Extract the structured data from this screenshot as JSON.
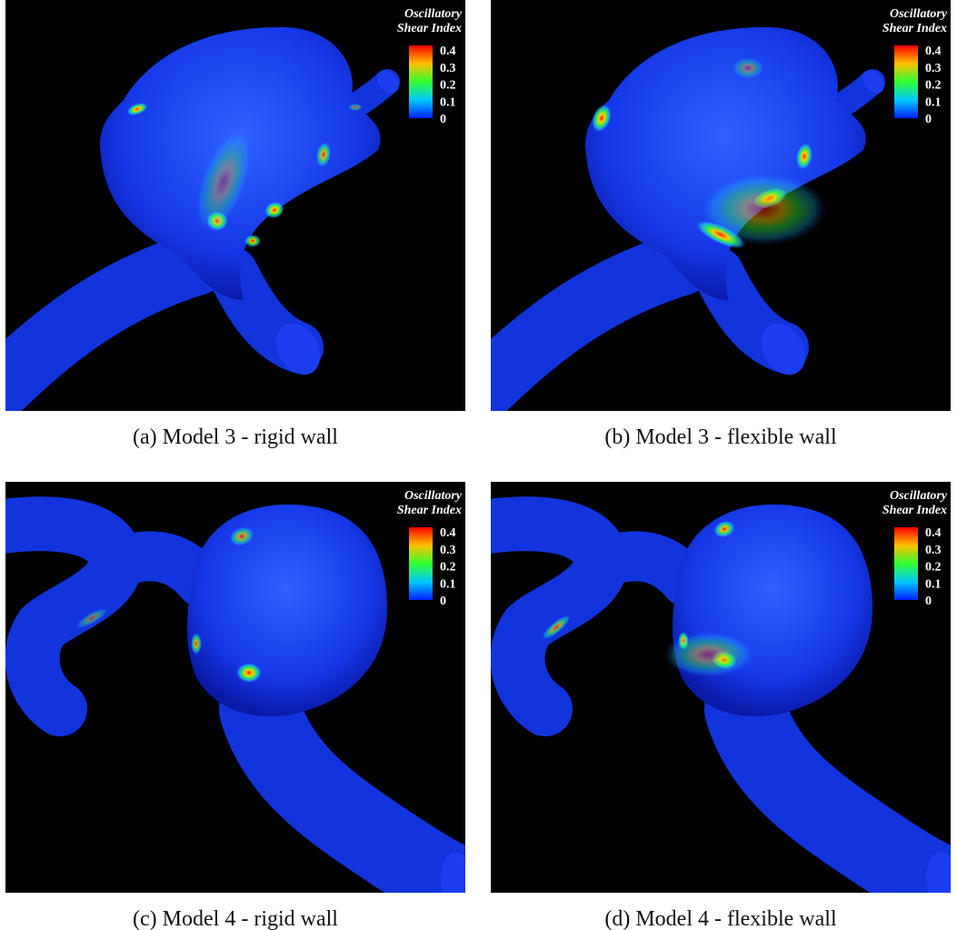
{
  "panels": [
    {
      "caption": "(a) Model 3 - rigid wall",
      "legend": {
        "title": [
          "Oscillatory",
          "Shear Index"
        ],
        "ticks": [
          "0.4",
          "0.3",
          "0.2",
          "0.1",
          "0"
        ]
      }
    },
    {
      "caption": "(b) Model 3 - flexible wall",
      "legend": {
        "title": [
          "Oscillatory",
          "Shear Index"
        ],
        "ticks": [
          "0.4",
          "0.3",
          "0.2",
          "0.1",
          "0"
        ]
      }
    },
    {
      "caption": "(c) Model 4 - rigid wall",
      "legend": {
        "title": [
          "Oscillatory",
          "Shear Index"
        ],
        "ticks": [
          "0.4",
          "0.3",
          "0.2",
          "0.1",
          "0"
        ]
      }
    },
    {
      "caption": "(d) Model 4 - flexible wall",
      "legend": {
        "title": [
          "Oscillatory",
          "Shear Index"
        ],
        "ticks": [
          "0.4",
          "0.3",
          "0.2",
          "0.1",
          "0"
        ]
      }
    }
  ]
}
